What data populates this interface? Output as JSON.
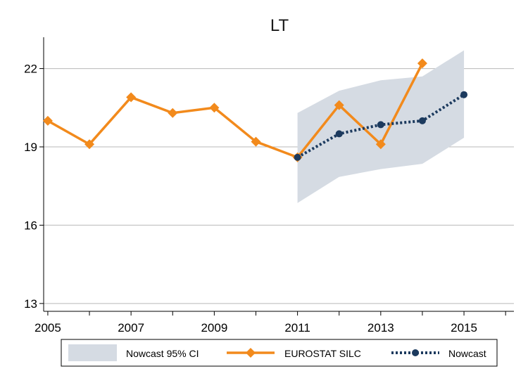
{
  "chart_data": {
    "type": "line",
    "title": "LT",
    "xlabel": "",
    "ylabel": "",
    "xlim": [
      2004.9,
      2016.2
    ],
    "ylim": [
      12.7,
      23.2
    ],
    "x_ticks": [
      2005,
      2007,
      2009,
      2011,
      2013,
      2015
    ],
    "y_ticks": [
      13,
      16,
      19,
      22
    ],
    "grid": "horizontal",
    "legend_position": "bottom",
    "band": {
      "name": "Nowcast 95% CI",
      "color": "#d5dbe3",
      "points": [
        {
          "x": 2011,
          "low": 16.85,
          "high": 20.3
        },
        {
          "x": 2012,
          "low": 17.85,
          "high": 21.15
        },
        {
          "x": 2013,
          "low": 18.15,
          "high": 21.55
        },
        {
          "x": 2014,
          "low": 18.35,
          "high": 21.7
        },
        {
          "x": 2015,
          "low": 19.35,
          "high": 22.7
        }
      ]
    },
    "series": [
      {
        "name": "EUROSTAT SILC",
        "color": "#f28a1c",
        "style": "solid",
        "marker": "diamond",
        "x": [
          2005,
          2006,
          2007,
          2008,
          2009,
          2010,
          2011,
          2012,
          2013,
          2014
        ],
        "values": [
          20.0,
          19.1,
          20.9,
          20.3,
          20.5,
          19.2,
          18.6,
          20.6,
          19.1,
          22.2
        ]
      },
      {
        "name": "Nowcast",
        "color": "#1c3a5e",
        "style": "dotted",
        "marker": "circle",
        "x": [
          2011,
          2012,
          2013,
          2014,
          2015
        ],
        "values": [
          18.6,
          19.5,
          19.85,
          20.0,
          21.0
        ]
      }
    ]
  }
}
